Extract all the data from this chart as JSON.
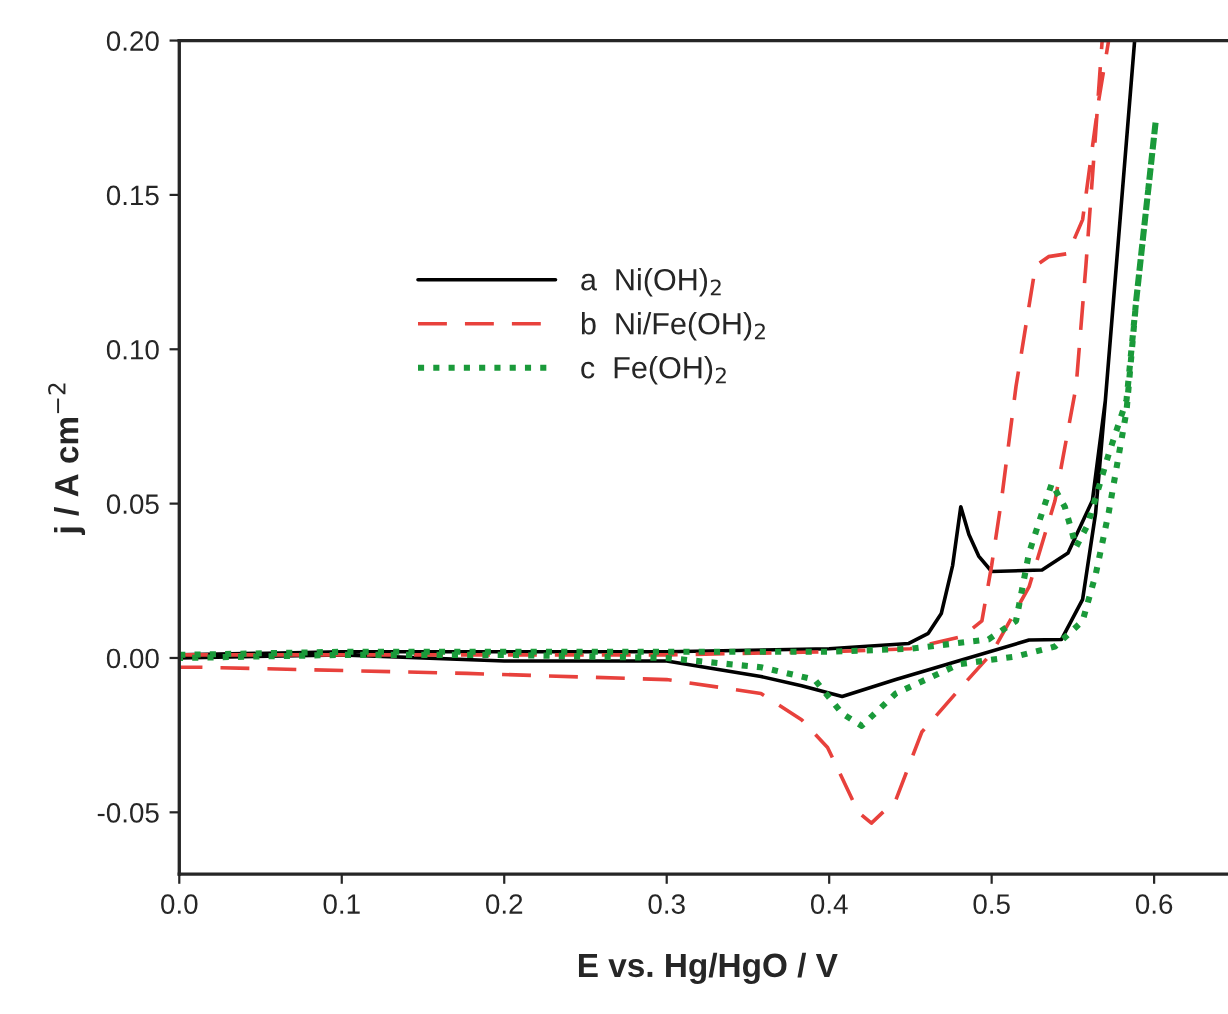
{
  "chart_data": {
    "type": "line",
    "xlabel": "E vs. Hg/HgO / V",
    "ylabel": "j / A cm$^{−2}$",
    "xlim": [
      0,
      0.65
    ],
    "ylim": [
      -0.07,
      0.2
    ],
    "xticks": [
      {
        "value": 0,
        "label": "0.0"
      },
      0.1,
      0.2,
      0.3,
      0.4,
      0.5,
      0.6
    ],
    "yticks": [
      {
        "value": -0.05,
        "label": "-0.05"
      },
      {
        "value": 0,
        "label": "0.00"
      },
      0.05,
      {
        "value": 0.1,
        "label": "0.10"
      },
      0.15,
      {
        "value": 0.2,
        "label": "0.20"
      }
    ],
    "grid": false,
    "legend": "top left",
    "series": [
      {
        "name": "a  Ni(OH)$_{2}$",
        "color": "#000000",
        "line_style": "solid",
        "x": [
          0,
          0.1,
          0.2,
          0.3,
          0.4,
          0.449,
          0.461,
          0.469,
          0.476,
          0.481,
          0.486,
          0.492,
          0.5,
          0.531,
          0.547,
          0.562,
          0.57,
          0.588,
          0.57,
          0.564,
          0.556,
          0.543,
          0.523,
          0.482,
          0.441,
          0.408,
          0.383,
          0.358,
          0.3,
          0.2,
          0.1,
          0
        ],
        "values": [
          0.001,
          0.002,
          0.002,
          0.002,
          0.003,
          0.0047,
          0.008,
          0.0144,
          0.03,
          0.049,
          0.04,
          0.033,
          0.028,
          0.0285,
          0.034,
          0.051,
          0.0835,
          0.2,
          0.0835,
          0.047,
          0.019,
          0.006,
          0.0058,
          -0.0006,
          -0.007,
          -0.0125,
          -0.009,
          -0.006,
          -0.001,
          -0.001,
          0.001,
          0.0
        ]
      },
      {
        "name": "b  Ni/Fe(OH)$_{2}$",
        "color": "#e8413c",
        "line_style": "dashed",
        "x": [
          0,
          0.1,
          0.2,
          0.3,
          0.4,
          0.45,
          0.482,
          0.494,
          0.5,
          0.506,
          0.515,
          0.527,
          0.535,
          0.547,
          0.556,
          0.566,
          0.572,
          0.568,
          0.564,
          0.558,
          0.552,
          0.539,
          0.523,
          0.5,
          0.482,
          0.457,
          0.441,
          0.426,
          0.418,
          0.399,
          0.383,
          0.358,
          0.3,
          0.177,
          0.013,
          0
        ],
        "values": [
          0.001,
          0.001,
          0.001,
          0.001,
          0.002,
          0.003,
          0.007,
          0.012,
          0.03,
          0.051,
          0.088,
          0.127,
          0.13,
          0.131,
          0.142,
          0.181,
          0.2,
          0.2,
          0.17,
          0.127,
          0.088,
          0.051,
          0.023,
          0.0015,
          -0.009,
          -0.024,
          -0.046,
          -0.0535,
          -0.05,
          -0.029,
          -0.02,
          -0.0115,
          -0.007,
          -0.005,
          -0.003,
          -0.003
        ]
      },
      {
        "name": "c  Fe(OH)$_{2}$",
        "color": "#1a9a3a",
        "line_style": "dotted",
        "x": [
          0,
          0.1,
          0.2,
          0.3,
          0.4,
          0.45,
          0.498,
          0.515,
          0.523,
          0.531,
          0.537,
          0.545,
          0.552,
          0.559,
          0.572,
          0.583,
          0.589,
          0.601,
          0.589,
          0.583,
          0.572,
          0.564,
          0.556,
          0.539,
          0.515,
          0.48,
          0.441,
          0.42,
          0.408,
          0.391,
          0.358,
          0.3,
          0.2,
          0.1,
          0
        ],
        "values": [
          0.001,
          0.002,
          0.002,
          0.002,
          0.002,
          0.003,
          0.006,
          0.012,
          0.034,
          0.047,
          0.0565,
          0.049,
          0.036,
          0.043,
          0.066,
          0.0835,
          0.116,
          0.174,
          0.116,
          0.08,
          0.047,
          0.027,
          0.012,
          0.0037,
          0.0005,
          -0.002,
          -0.0115,
          -0.022,
          -0.018,
          -0.007,
          -0.003,
          0.0,
          0.001,
          0.001,
          0.0
        ]
      }
    ]
  }
}
